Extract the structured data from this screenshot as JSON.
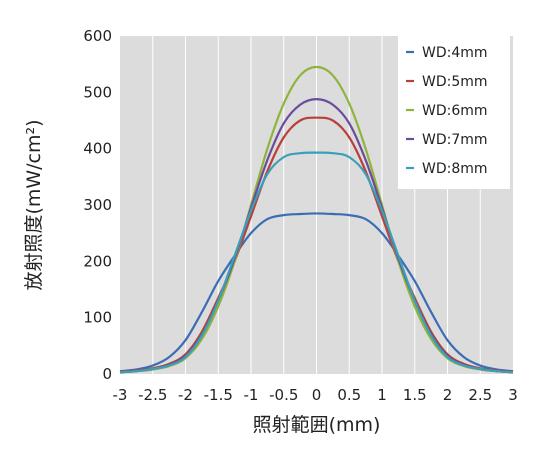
{
  "chart_data": {
    "type": "line",
    "title": "",
    "xlabel": "照射範囲(mm)",
    "ylabel": "放射照度(mW/cm²)",
    "xlim": [
      -3,
      3
    ],
    "ylim": [
      0,
      600
    ],
    "xticks": [
      -3,
      -2.5,
      -2,
      -1.5,
      -1,
      -0.5,
      0,
      0.5,
      1,
      1.5,
      2,
      2.5,
      3
    ],
    "xtick_labels": [
      "-3",
      "-2.5",
      "-2",
      "-1.5",
      "-1",
      "-0.5",
      "0",
      "0.5",
      "1",
      "1.5",
      "2",
      "2.5",
      "3"
    ],
    "yticks": [
      0,
      100,
      200,
      300,
      400,
      500,
      600
    ],
    "ytick_labels": [
      "0",
      "100",
      "200",
      "300",
      "400",
      "500",
      "600"
    ],
    "grid": "vertical",
    "background": "#dcdcdc",
    "legend_position": "top-right",
    "x": [
      -3,
      -2.75,
      -2.5,
      -2.25,
      -2,
      -1.75,
      -1.5,
      -1.25,
      -1,
      -0.75,
      -0.5,
      -0.25,
      0,
      0.25,
      0.5,
      0.75,
      1,
      1.25,
      1.5,
      1.75,
      2,
      2.25,
      2.5,
      2.75,
      3
    ],
    "series": [
      {
        "name": "WD:4mm",
        "color": "#3c6db4",
        "values": [
          5,
          8,
          15,
          30,
          60,
          110,
          165,
          210,
          250,
          275,
          282,
          284,
          285,
          284,
          282,
          275,
          250,
          210,
          165,
          110,
          60,
          30,
          15,
          8,
          5
        ]
      },
      {
        "name": "WD:5mm",
        "color": "#b8403c",
        "values": [
          4,
          6,
          10,
          18,
          35,
          75,
          135,
          200,
          280,
          360,
          420,
          450,
          455,
          450,
          420,
          360,
          280,
          200,
          135,
          75,
          35,
          18,
          10,
          6,
          4
        ]
      },
      {
        "name": "WD:6mm",
        "color": "#8fb43c",
        "values": [
          3,
          5,
          8,
          14,
          28,
          62,
          120,
          200,
          300,
          400,
          480,
          530,
          545,
          530,
          480,
          400,
          300,
          200,
          120,
          62,
          28,
          14,
          8,
          5,
          3
        ]
      },
      {
        "name": "WD:7mm",
        "color": "#6a4c9c",
        "values": [
          3,
          5,
          9,
          16,
          32,
          70,
          130,
          205,
          295,
          380,
          445,
          478,
          488,
          478,
          445,
          380,
          295,
          205,
          130,
          70,
          32,
          16,
          9,
          5,
          3
        ]
      },
      {
        "name": "WD:8mm",
        "color": "#3aa0b8",
        "values": [
          3,
          5,
          9,
          15,
          30,
          68,
          130,
          210,
          290,
          355,
          385,
          392,
          393,
          392,
          385,
          355,
          290,
          210,
          130,
          68,
          30,
          15,
          9,
          5,
          3
        ]
      }
    ]
  }
}
